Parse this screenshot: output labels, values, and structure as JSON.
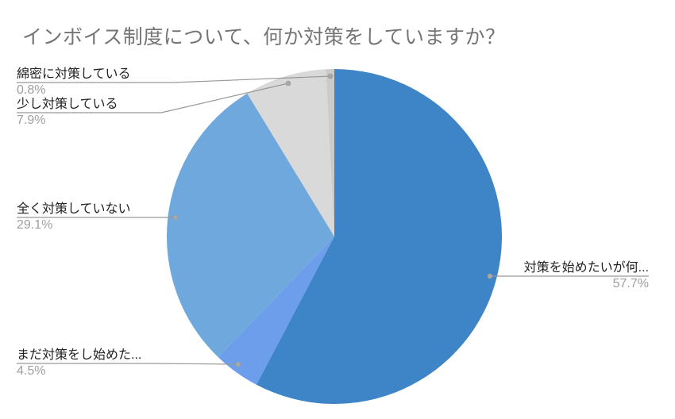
{
  "chart_data": {
    "type": "pie",
    "title": "インボイス制度について、何か対策をしていますか？",
    "legend": "none",
    "labels_position": "outside-with-leader-lines",
    "start_angle_deg": 0,
    "direction": "clockwise",
    "slices": [
      {
        "label": "対策を始めたいが何...",
        "pct": "57.7%",
        "value": 57.7,
        "color": "#3d85c6"
      },
      {
        "label": "まだ対策をし始めた...",
        "pct": "4.5%",
        "value": 4.5,
        "color": "#6d9eeb"
      },
      {
        "label": "全く対策していない",
        "pct": "29.1%",
        "value": 29.1,
        "color": "#6fa8dc"
      },
      {
        "label": "少し対策している",
        "pct": "7.9%",
        "value": 7.9,
        "color": "#d9d9d9"
      },
      {
        "label": "綿密に対策している",
        "pct": "0.8%",
        "value": 0.8,
        "color": "#cbcbcb"
      }
    ]
  },
  "colors": {
    "background": "#ffffff",
    "title": "#757575",
    "label": "#212121",
    "percent": "#9e9e9e",
    "leader_line": "#999999",
    "leader_dot": "#a8a8a8"
  }
}
